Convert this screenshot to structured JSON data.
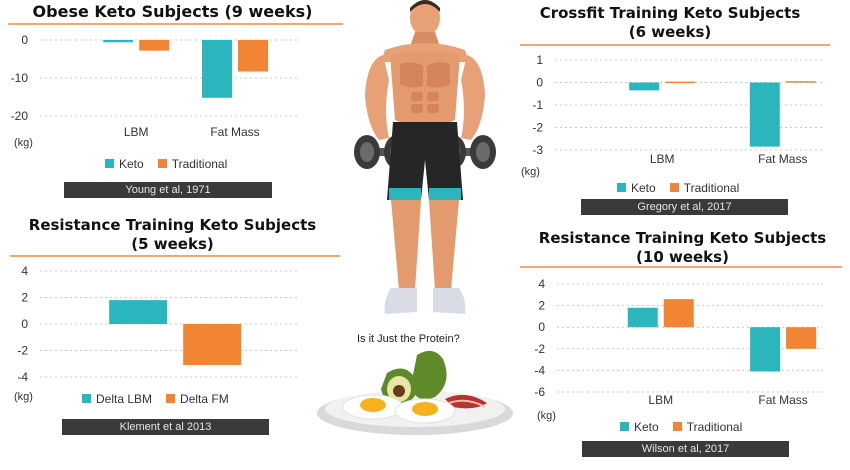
{
  "colors": {
    "keto": "#2bb5bd",
    "traditional": "#f28533",
    "rule": "#f2a676",
    "grid": "#c8c8c8",
    "cite_bg": "#3a3a3a"
  },
  "center": {
    "question": "Is it Just the Protein?"
  },
  "panels": [
    {
      "title_lines": [
        "Obese Keto Subjects (9 weeks)"
      ],
      "citation": "Young et al, 1971",
      "unit": "(kg)",
      "legend": [
        "Keto",
        "Traditional"
      ]
    },
    {
      "title_lines": [
        "Crossfit Training Keto Subjects",
        "(6 weeks)"
      ],
      "citation": "Gregory et al, 2017",
      "unit": "(kg)",
      "legend": [
        "Keto",
        "Traditional"
      ]
    },
    {
      "title_lines": [
        "Resistance Training Keto Subjects",
        "(5 weeks)"
      ],
      "citation": "Klement et al 2013",
      "unit": "(kg)",
      "legend": [
        "Delta LBM",
        "Delta FM"
      ]
    },
    {
      "title_lines": [
        "Resistance Training Keto Subjects",
        "(10 weeks)"
      ],
      "citation": "Wilson et al, 2017",
      "unit": "(kg)",
      "legend": [
        "Keto",
        "Traditional"
      ]
    }
  ],
  "chart_data": [
    {
      "type": "bar",
      "title": "Obese Keto Subjects (9 weeks)",
      "categories": [
        "LBM",
        "Fat Mass"
      ],
      "series": [
        {
          "name": "Keto",
          "values": [
            -0.6,
            -15.2
          ]
        },
        {
          "name": "Traditional",
          "values": [
            -2.8,
            -8.3
          ]
        }
      ],
      "ylabel": "(kg)",
      "ylim": [
        -20,
        0
      ],
      "yticks": [
        0,
        -10,
        -20
      ],
      "legend_position": "bottom",
      "grid": true
    },
    {
      "type": "bar",
      "title": "Crossfit Training Keto Subjects (6 weeks)",
      "categories": [
        "LBM",
        "Fat Mass"
      ],
      "series": [
        {
          "name": "Keto",
          "values": [
            -0.35,
            -2.85
          ]
        },
        {
          "name": "Traditional",
          "values": [
            0.04,
            0.06
          ]
        }
      ],
      "ylabel": "(kg)",
      "ylim": [
        -3,
        1
      ],
      "yticks": [
        1,
        0,
        -1,
        -2,
        -3
      ],
      "legend_position": "bottom",
      "grid": true
    },
    {
      "type": "bar",
      "title": "Resistance Training Keto Subjects (5 weeks)",
      "categories": [
        ""
      ],
      "series": [
        {
          "name": "Delta LBM",
          "values": [
            1.8
          ]
        },
        {
          "name": "Delta FM",
          "values": [
            -3.1
          ]
        }
      ],
      "ylabel": "(kg)",
      "ylim": [
        -4,
        4
      ],
      "yticks": [
        4,
        2,
        0,
        -2,
        -4
      ],
      "legend_position": "bottom",
      "grid": true
    },
    {
      "type": "bar",
      "title": "Resistance Training Keto Subjects (10 weeks)",
      "categories": [
        "LBM",
        "Fat Mass"
      ],
      "series": [
        {
          "name": "Keto",
          "values": [
            1.8,
            -4.1
          ]
        },
        {
          "name": "Traditional",
          "values": [
            2.6,
            -2.0
          ]
        }
      ],
      "ylabel": "(kg)",
      "ylim": [
        -6,
        4
      ],
      "yticks": [
        4,
        2,
        0,
        -2,
        -4,
        -6
      ],
      "legend_position": "bottom",
      "grid": true
    }
  ]
}
